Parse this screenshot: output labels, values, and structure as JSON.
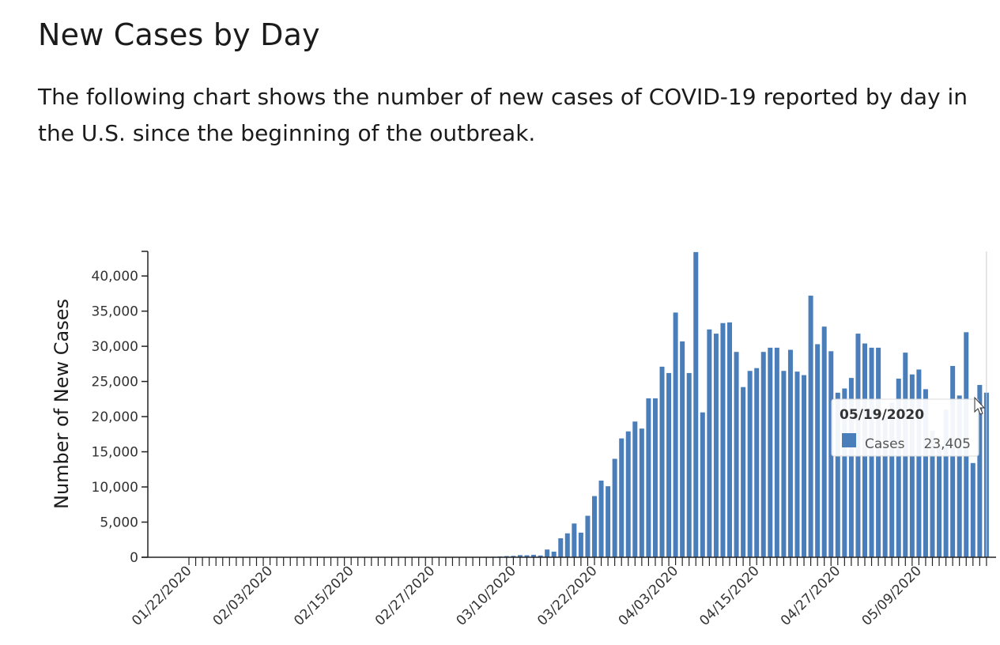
{
  "heading": "New Cases by Day",
  "intro": {
    "line1": "The following chart shows the number of new cases of COVID-19 reported by day in",
    "line2": "the U.S. since the beginning of the outbreak."
  },
  "colors": {
    "bar": "#4a7ebb",
    "axis": "#222222"
  },
  "chart_data": {
    "type": "bar",
    "ylabel": "Number of New Cases",
    "ylim": [
      0,
      43500
    ],
    "y_ticks": [
      0,
      5000,
      10000,
      15000,
      20000,
      25000,
      30000,
      35000,
      40000
    ],
    "y_tick_labels": [
      "0",
      "5,000",
      "10,000",
      "15,000",
      "20,000",
      "25,000",
      "30,000",
      "35,000",
      "40,000"
    ],
    "x_start_date": "01/22/2020",
    "x_tick_labels": [
      "01/22/2020",
      "02/03/2020",
      "02/15/2020",
      "02/27/2020",
      "03/10/2020",
      "03/22/2020",
      "04/03/2020",
      "04/15/2020",
      "04/27/2020",
      "05/09/2020"
    ],
    "dates": [
      "01/22/2020",
      "01/23/2020",
      "01/24/2020",
      "01/25/2020",
      "01/26/2020",
      "01/27/2020",
      "01/28/2020",
      "01/29/2020",
      "01/30/2020",
      "01/31/2020",
      "02/01/2020",
      "02/02/2020",
      "02/03/2020",
      "02/04/2020",
      "02/05/2020",
      "02/06/2020",
      "02/07/2020",
      "02/08/2020",
      "02/09/2020",
      "02/10/2020",
      "02/11/2020",
      "02/12/2020",
      "02/13/2020",
      "02/14/2020",
      "02/15/2020",
      "02/16/2020",
      "02/17/2020",
      "02/18/2020",
      "02/19/2020",
      "02/20/2020",
      "02/21/2020",
      "02/22/2020",
      "02/23/2020",
      "02/24/2020",
      "02/25/2020",
      "02/26/2020",
      "02/27/2020",
      "02/28/2020",
      "02/29/2020",
      "03/01/2020",
      "03/02/2020",
      "03/03/2020",
      "03/04/2020",
      "03/05/2020",
      "03/06/2020",
      "03/07/2020",
      "03/08/2020",
      "03/09/2020",
      "03/10/2020",
      "03/11/2020",
      "03/12/2020",
      "03/13/2020",
      "03/14/2020",
      "03/15/2020",
      "03/16/2020",
      "03/17/2020",
      "03/18/2020",
      "03/19/2020",
      "03/20/2020",
      "03/21/2020",
      "03/22/2020",
      "03/23/2020",
      "03/24/2020",
      "03/25/2020",
      "03/26/2020",
      "03/27/2020",
      "03/28/2020",
      "03/29/2020",
      "03/30/2020",
      "03/31/2020",
      "04/01/2020",
      "04/02/2020",
      "04/03/2020",
      "04/04/2020",
      "04/05/2020",
      "04/06/2020",
      "04/07/2020",
      "04/08/2020",
      "04/09/2020",
      "04/10/2020",
      "04/11/2020",
      "04/12/2020",
      "04/13/2020",
      "04/14/2020",
      "04/15/2020",
      "04/16/2020",
      "04/17/2020",
      "04/18/2020",
      "04/19/2020",
      "04/20/2020",
      "04/21/2020",
      "04/22/2020",
      "04/23/2020",
      "04/24/2020",
      "04/25/2020",
      "04/26/2020",
      "04/27/2020",
      "04/28/2020",
      "04/29/2020",
      "04/30/2020",
      "05/01/2020",
      "05/02/2020",
      "05/03/2020",
      "05/04/2020",
      "05/05/2020",
      "05/06/2020",
      "05/07/2020",
      "05/08/2020",
      "05/09/2020",
      "05/10/2020",
      "05/11/2020",
      "05/12/2020",
      "05/13/2020",
      "05/14/2020",
      "05/15/2020",
      "05/16/2020",
      "05/17/2020",
      "05/18/2020",
      "05/19/2020"
    ],
    "values": [
      1,
      0,
      1,
      0,
      3,
      0,
      0,
      1,
      0,
      2,
      1,
      0,
      3,
      0,
      0,
      0,
      0,
      0,
      0,
      0,
      1,
      0,
      1,
      0,
      0,
      0,
      0,
      0,
      0,
      0,
      0,
      0,
      0,
      0,
      10,
      0,
      3,
      15,
      6,
      7,
      20,
      30,
      30,
      60,
      70,
      80,
      120,
      170,
      200,
      300,
      280,
      350,
      250,
      1100,
      800,
      2700,
      3400,
      4800,
      3500,
      5900,
      8700,
      10900,
      10100,
      14000,
      16900,
      17900,
      19300,
      18300,
      22600,
      22600,
      27100,
      26200,
      34800,
      30700,
      26200,
      43400,
      20600,
      32400,
      31800,
      33300,
      33400,
      29200,
      24200,
      26500,
      26900,
      29200,
      29800,
      29800,
      26500,
      29500,
      26400,
      25900,
      37200,
      30300,
      32800,
      29300,
      23400,
      24000,
      25500,
      31800,
      30400,
      29800,
      29800,
      20000,
      22000,
      25400,
      29100,
      26000,
      26700,
      23900,
      18000,
      16000,
      21000,
      27200,
      23000,
      32000,
      13400,
      24500,
      23405
    ],
    "series": [
      {
        "name": "Cases"
      }
    ],
    "legend": "none"
  },
  "tooltip": {
    "date": "05/19/2020",
    "series": "Cases",
    "value": "23,405"
  }
}
